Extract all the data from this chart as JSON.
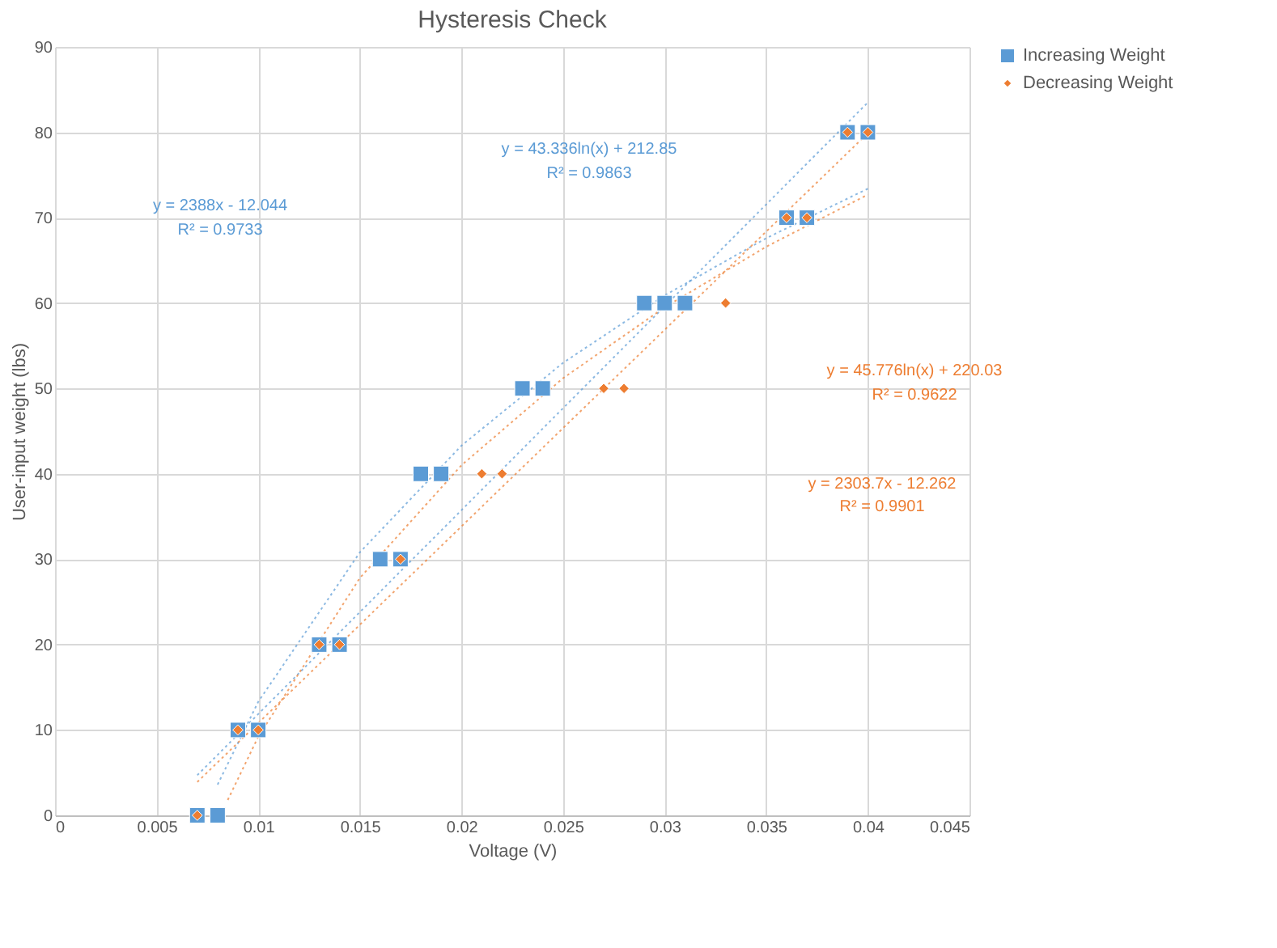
{
  "chart_data": {
    "type": "scatter",
    "title": "Hysteresis Check",
    "xlabel": "Voltage (V)",
    "ylabel": "User-input weight (lbs)",
    "xlim": [
      0,
      0.045
    ],
    "xticks": [
      0,
      0.005,
      0.01,
      0.015,
      0.02,
      0.025,
      0.03,
      0.035,
      0.04,
      0.045
    ],
    "ylim": [
      0,
      90
    ],
    "yticks": [
      0,
      10,
      20,
      30,
      40,
      50,
      60,
      70,
      80,
      90
    ],
    "grid": true,
    "legend": "right",
    "series": [
      {
        "name": "Increasing Weight",
        "color": "#5b9bd5",
        "marker": "square",
        "x": [
          0.007,
          0.008,
          0.009,
          0.01,
          0.013,
          0.014,
          0.016,
          0.017,
          0.018,
          0.019,
          0.023,
          0.024,
          0.029,
          0.03,
          0.031,
          0.036,
          0.037,
          0.039,
          0.04
        ],
        "values": [
          0,
          0,
          10,
          10,
          20,
          20,
          30,
          30,
          40,
          40,
          50,
          50,
          60,
          60,
          60,
          70,
          70,
          80,
          80
        ]
      },
      {
        "name": "Decreasing Weight",
        "color": "#ed7d31",
        "marker": "diamond",
        "x": [
          0.007,
          0.009,
          0.01,
          0.013,
          0.014,
          0.017,
          0.021,
          0.022,
          0.027,
          0.028,
          0.033,
          0.036,
          0.037,
          0.039,
          0.04
        ],
        "values": [
          0,
          10,
          10,
          20,
          20,
          30,
          40,
          40,
          50,
          50,
          60,
          70,
          70,
          80,
          80
        ]
      },
      {
        "type": "line",
        "color": "#5b9bd5",
        "line_style": "dotted",
        "marker": "none",
        "x": [
          0.007,
          0.04
        ],
        "values": [
          4.7,
          83.5
        ]
      },
      {
        "type": "line",
        "color": "#5b9bd5",
        "line_style": "dotted",
        "marker": "none",
        "x": [
          0.008,
          0.01,
          0.015,
          0.02,
          0.025,
          0.03,
          0.035,
          0.04
        ],
        "values": [
          3.6,
          13.3,
          30.8,
          43.3,
          53.0,
          60.9,
          67.6,
          73.4
        ]
      },
      {
        "type": "line",
        "color": "#ed7d31",
        "line_style": "dotted",
        "marker": "none",
        "x": [
          0.007,
          0.04
        ],
        "values": [
          3.9,
          79.9
        ]
      },
      {
        "type": "line",
        "color": "#ed7d31",
        "line_style": "dotted",
        "marker": "none",
        "x": [
          0.0085,
          0.01,
          0.015,
          0.02,
          0.025,
          0.03,
          0.035,
          0.04
        ],
        "values": [
          1.8,
          9.2,
          27.8,
          41.0,
          51.2,
          59.5,
          66.6,
          72.7
        ]
      }
    ],
    "annotations": [
      "y = 2388x - 12.044",
      "R² = 0.9733",
      "y = 43.336ln(x) + 212.85",
      "R² = 0.9863",
      "y = 45.776ln(x) + 220.03",
      "R² = 0.9622",
      "y = 2303.7x - 12.262",
      "R² = 0.9901"
    ]
  }
}
